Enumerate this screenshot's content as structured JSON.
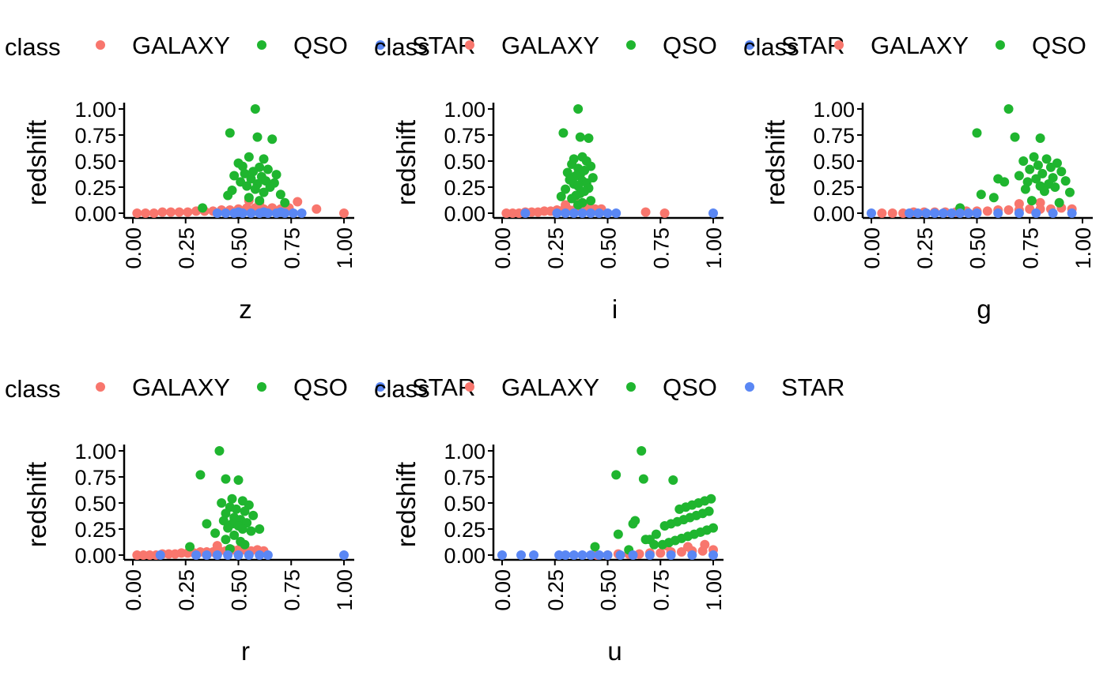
{
  "figure": {
    "colors": {
      "GALAXY": "#F8766D",
      "QSO": "#1FB52F",
      "STAR": "#5A87F4"
    },
    "legend": {
      "title": "class",
      "entries": [
        "GALAXY",
        "QSO",
        "STAR"
      ]
    }
  },
  "chart_data": [
    {
      "type": "scatter",
      "xlabel": "z",
      "ylabel": "redshift",
      "xlim": [
        0,
        1
      ],
      "ylim": [
        0,
        1
      ],
      "xticks": [
        "0.00",
        "0.25",
        "0.50",
        "0.75",
        "1.00"
      ],
      "yticks": [
        "0.00",
        "0.25",
        "0.50",
        "0.75",
        "1.00"
      ],
      "legend_position": "top",
      "grid": false,
      "series": [
        {
          "name": "GALAXY",
          "x": [
            0.02,
            0.06,
            0.1,
            0.14,
            0.18,
            0.22,
            0.26,
            0.3,
            0.34,
            0.38,
            0.42,
            0.46,
            0.5,
            0.54,
            0.58,
            0.62,
            0.66,
            0.7,
            0.74,
            0.55,
            0.6,
            0.78,
            0.87,
            1.0
          ],
          "y": [
            0.0,
            0.0,
            0.0,
            0.01,
            0.01,
            0.01,
            0.01,
            0.02,
            0.02,
            0.02,
            0.03,
            0.03,
            0.04,
            0.05,
            0.05,
            0.04,
            0.05,
            0.04,
            0.05,
            0.12,
            0.1,
            0.11,
            0.04,
            0.0
          ]
        },
        {
          "name": "QSO",
          "x": [
            0.58,
            0.46,
            0.59,
            0.66,
            0.55,
            0.62,
            0.5,
            0.52,
            0.6,
            0.64,
            0.57,
            0.53,
            0.68,
            0.48,
            0.61,
            0.56,
            0.63,
            0.51,
            0.67,
            0.59,
            0.54,
            0.65,
            0.58,
            0.47,
            0.62,
            0.7,
            0.45,
            0.33,
            0.55,
            0.6,
            0.72
          ],
          "y": [
            1.0,
            0.77,
            0.73,
            0.71,
            0.54,
            0.52,
            0.48,
            0.45,
            0.44,
            0.42,
            0.4,
            0.38,
            0.37,
            0.36,
            0.35,
            0.33,
            0.31,
            0.3,
            0.29,
            0.28,
            0.26,
            0.25,
            0.23,
            0.22,
            0.2,
            0.18,
            0.17,
            0.05,
            0.15,
            0.12,
            0.1
          ]
        },
        {
          "name": "STAR",
          "x": [
            0.4,
            0.44,
            0.48,
            0.52,
            0.56,
            0.6,
            0.64,
            0.68,
            0.72,
            0.76,
            0.8,
            0.5,
            0.62,
            0.7
          ],
          "y": [
            0.0,
            0.0,
            0.0,
            0.0,
            0.0,
            0.0,
            0.0,
            0.0,
            0.0,
            0.0,
            0.0,
            0.01,
            0.01,
            0.01
          ]
        }
      ]
    },
    {
      "type": "scatter",
      "xlabel": "i",
      "ylabel": "redshift",
      "xlim": [
        0,
        1
      ],
      "ylim": [
        0,
        1
      ],
      "xticks": [
        "0.00",
        "0.25",
        "0.50",
        "0.75",
        "1.00"
      ],
      "yticks": [
        "0.00",
        "0.25",
        "0.50",
        "0.75",
        "1.00"
      ],
      "legend_position": "top",
      "grid": false,
      "series": [
        {
          "name": "GALAXY",
          "x": [
            0.02,
            0.05,
            0.08,
            0.11,
            0.14,
            0.17,
            0.2,
            0.23,
            0.26,
            0.29,
            0.32,
            0.35,
            0.38,
            0.41,
            0.44,
            0.47,
            0.3,
            0.36,
            0.68,
            0.77
          ],
          "y": [
            0.0,
            0.0,
            0.0,
            0.01,
            0.01,
            0.01,
            0.02,
            0.02,
            0.03,
            0.03,
            0.03,
            0.04,
            0.04,
            0.05,
            0.04,
            0.04,
            0.08,
            0.09,
            0.01,
            0.0
          ]
        },
        {
          "name": "QSO",
          "x": [
            0.36,
            0.29,
            0.37,
            0.41,
            0.38,
            0.34,
            0.4,
            0.33,
            0.42,
            0.36,
            0.39,
            0.31,
            0.37,
            0.35,
            0.43,
            0.32,
            0.38,
            0.4,
            0.34,
            0.36,
            0.41,
            0.3,
            0.39,
            0.37,
            0.35,
            0.28,
            0.33,
            0.42,
            0.38,
            0.36
          ],
          "y": [
            1.0,
            0.77,
            0.73,
            0.72,
            0.54,
            0.52,
            0.5,
            0.47,
            0.45,
            0.43,
            0.41,
            0.39,
            0.37,
            0.36,
            0.34,
            0.32,
            0.31,
            0.29,
            0.28,
            0.26,
            0.24,
            0.23,
            0.21,
            0.19,
            0.17,
            0.16,
            0.14,
            0.12,
            0.1,
            0.08
          ]
        },
        {
          "name": "STAR",
          "x": [
            0.11,
            0.26,
            0.3,
            0.34,
            0.38,
            0.42,
            0.46,
            0.5,
            0.54,
            1.0
          ],
          "y": [
            0.0,
            0.0,
            0.0,
            0.0,
            0.0,
            0.0,
            0.0,
            0.0,
            0.0,
            0.0
          ]
        }
      ]
    },
    {
      "type": "scatter",
      "xlabel": "g",
      "ylabel": "redshift",
      "xlim": [
        0,
        1
      ],
      "ylim": [
        0,
        1
      ],
      "xticks": [
        "0.00",
        "0.25",
        "0.50",
        "0.75",
        "1.00"
      ],
      "yticks": [
        "0.00",
        "0.25",
        "0.50",
        "0.75",
        "1.00"
      ],
      "legend_position": "top",
      "grid": false,
      "series": [
        {
          "name": "GALAXY",
          "x": [
            0.05,
            0.1,
            0.15,
            0.2,
            0.25,
            0.3,
            0.35,
            0.4,
            0.45,
            0.5,
            0.55,
            0.6,
            0.65,
            0.7,
            0.75,
            0.8,
            0.85,
            0.9,
            0.95,
            0.7,
            0.8
          ],
          "y": [
            0.0,
            0.0,
            0.0,
            0.01,
            0.01,
            0.01,
            0.01,
            0.01,
            0.02,
            0.02,
            0.02,
            0.03,
            0.03,
            0.03,
            0.04,
            0.04,
            0.04,
            0.05,
            0.04,
            0.09,
            0.1
          ]
        },
        {
          "name": "QSO",
          "x": [
            0.65,
            0.5,
            0.68,
            0.8,
            0.77,
            0.83,
            0.72,
            0.88,
            0.79,
            0.85,
            0.75,
            0.9,
            0.81,
            0.7,
            0.86,
            0.78,
            0.92,
            0.74,
            0.84,
            0.8,
            0.87,
            0.73,
            0.82,
            0.63,
            0.6,
            0.58,
            0.52,
            0.94,
            0.76,
            0.89,
            0.42
          ],
          "y": [
            1.0,
            0.77,
            0.73,
            0.72,
            0.54,
            0.52,
            0.5,
            0.48,
            0.46,
            0.44,
            0.42,
            0.4,
            0.38,
            0.36,
            0.34,
            0.33,
            0.31,
            0.3,
            0.28,
            0.26,
            0.25,
            0.23,
            0.21,
            0.3,
            0.33,
            0.15,
            0.18,
            0.2,
            0.12,
            0.1,
            0.05
          ]
        },
        {
          "name": "STAR",
          "x": [
            0.0,
            0.18,
            0.22,
            0.26,
            0.3,
            0.34,
            0.38,
            0.42,
            0.46,
            0.5,
            0.6,
            0.7,
            0.78,
            0.86,
            0.95
          ],
          "y": [
            0.0,
            0.0,
            0.0,
            0.0,
            0.0,
            0.0,
            0.0,
            0.0,
            0.0,
            0.0,
            0.0,
            0.0,
            0.0,
            0.0,
            0.0
          ]
        }
      ]
    },
    {
      "type": "scatter",
      "xlabel": "r",
      "ylabel": "redshift",
      "xlim": [
        0,
        1
      ],
      "ylim": [
        0,
        1
      ],
      "xticks": [
        "0.00",
        "0.25",
        "0.50",
        "0.75",
        "1.00"
      ],
      "yticks": [
        "0.00",
        "0.25",
        "0.50",
        "0.75",
        "1.00"
      ],
      "legend_position": "top",
      "grid": false,
      "series": [
        {
          "name": "GALAXY",
          "x": [
            0.02,
            0.05,
            0.08,
            0.11,
            0.14,
            0.17,
            0.2,
            0.23,
            0.26,
            0.29,
            0.32,
            0.35,
            0.38,
            0.41,
            0.44,
            0.47,
            0.5,
            0.53,
            0.56,
            0.59,
            0.62,
            0.4
          ],
          "y": [
            0.0,
            0.0,
            0.0,
            0.0,
            0.01,
            0.01,
            0.01,
            0.02,
            0.02,
            0.02,
            0.03,
            0.03,
            0.03,
            0.04,
            0.04,
            0.05,
            0.05,
            0.05,
            0.04,
            0.05,
            0.04,
            0.09
          ]
        },
        {
          "name": "QSO",
          "x": [
            0.41,
            0.32,
            0.44,
            0.5,
            0.47,
            0.52,
            0.42,
            0.55,
            0.46,
            0.49,
            0.53,
            0.44,
            0.57,
            0.48,
            0.51,
            0.43,
            0.54,
            0.47,
            0.5,
            0.45,
            0.52,
            0.56,
            0.39,
            0.48,
            0.35,
            0.6,
            0.44,
            0.51,
            0.27,
            0.53,
            0.46
          ],
          "y": [
            1.0,
            0.77,
            0.73,
            0.72,
            0.54,
            0.52,
            0.5,
            0.48,
            0.46,
            0.44,
            0.42,
            0.4,
            0.38,
            0.36,
            0.34,
            0.33,
            0.31,
            0.3,
            0.28,
            0.26,
            0.25,
            0.23,
            0.21,
            0.19,
            0.3,
            0.25,
            0.15,
            0.13,
            0.08,
            0.1,
            0.06
          ]
        },
        {
          "name": "STAR",
          "x": [
            0.13,
            0.3,
            0.35,
            0.4,
            0.45,
            0.5,
            0.55,
            0.6,
            0.64,
            1.0
          ],
          "y": [
            0.0,
            0.0,
            0.0,
            0.0,
            0.0,
            0.0,
            0.0,
            0.0,
            0.0,
            0.0
          ]
        }
      ]
    },
    {
      "type": "scatter",
      "xlabel": "u",
      "ylabel": "redshift",
      "xlim": [
        0,
        1
      ],
      "ylim": [
        0,
        1
      ],
      "xticks": [
        "0.00",
        "0.25",
        "0.50",
        "0.75",
        "1.00"
      ],
      "yticks": [
        "0.00",
        "0.25",
        "0.50",
        "0.75",
        "1.00"
      ],
      "legend_position": "top",
      "grid": false,
      "series": [
        {
          "name": "GALAXY",
          "x": [
            0.45,
            0.5,
            0.55,
            0.6,
            0.65,
            0.7,
            0.75,
            0.8,
            0.85,
            0.9,
            0.95,
            1.0,
            0.78,
            0.88,
            0.96
          ],
          "y": [
            0.0,
            0.0,
            0.01,
            0.01,
            0.01,
            0.02,
            0.02,
            0.03,
            0.03,
            0.04,
            0.04,
            0.05,
            0.09,
            0.08,
            0.1
          ]
        },
        {
          "name": "QSO",
          "x": [
            0.66,
            0.54,
            0.67,
            0.81,
            0.99,
            0.96,
            0.93,
            0.9,
            0.87,
            0.84,
            0.98,
            0.95,
            0.92,
            0.89,
            0.86,
            0.83,
            0.8,
            0.77,
            1.0,
            0.97,
            0.94,
            0.91,
            0.88,
            0.85,
            0.82,
            0.79,
            0.76,
            0.73,
            0.7,
            0.63,
            0.62,
            0.55,
            0.44,
            0.6,
            0.68,
            0.72
          ],
          "y": [
            1.0,
            0.77,
            0.73,
            0.72,
            0.54,
            0.52,
            0.5,
            0.48,
            0.46,
            0.44,
            0.42,
            0.4,
            0.38,
            0.36,
            0.34,
            0.32,
            0.3,
            0.28,
            0.26,
            0.24,
            0.22,
            0.2,
            0.18,
            0.16,
            0.14,
            0.12,
            0.1,
            0.2,
            0.15,
            0.33,
            0.3,
            0.2,
            0.08,
            0.05,
            0.15,
            0.1
          ]
        },
        {
          "name": "STAR",
          "x": [
            0.0,
            0.09,
            0.15,
            0.27,
            0.3,
            0.34,
            0.38,
            0.42,
            0.46,
            0.5,
            0.56,
            0.62,
            0.7,
            0.8,
            0.9,
            1.0
          ],
          "y": [
            0.0,
            0.0,
            0.0,
            0.0,
            0.0,
            0.0,
            0.0,
            0.0,
            0.0,
            0.0,
            0.0,
            0.0,
            0.0,
            0.0,
            0.0,
            0.0
          ]
        }
      ]
    }
  ]
}
